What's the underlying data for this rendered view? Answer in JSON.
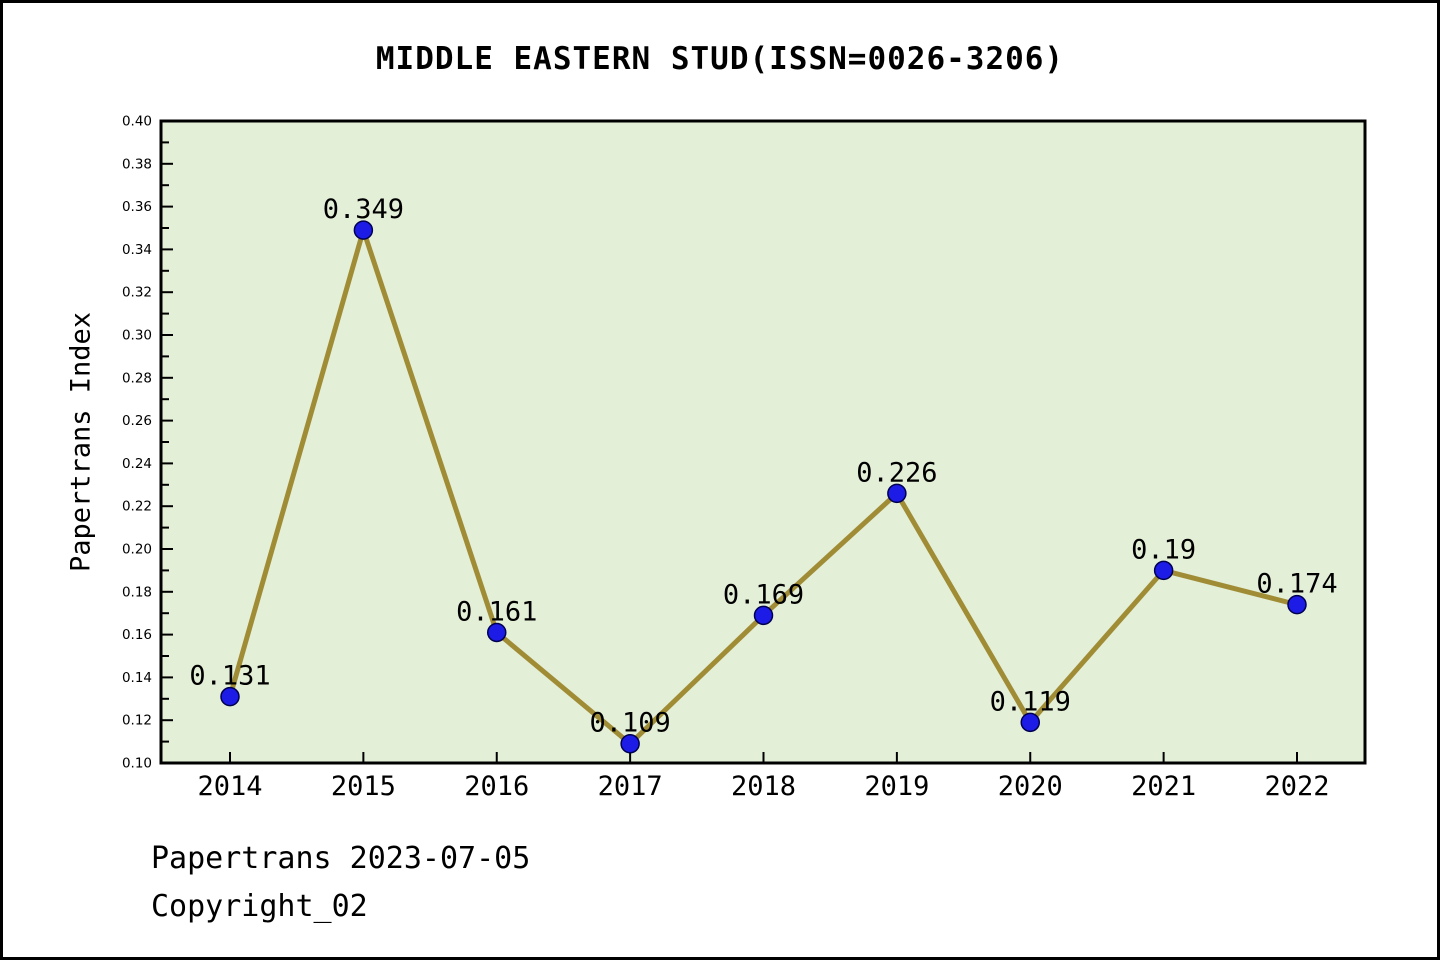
{
  "title": "MIDDLE EASTERN STUD(ISSN=0026-3206)",
  "ylabel": "Papertrans Index",
  "footer": {
    "line1": "Papertrans 2023-07-05",
    "line2": "Copyright_02"
  },
  "colors": {
    "plot_background": "#e4efd8",
    "line": "#a08c35",
    "marker_fill": "#1c1ce6",
    "marker_edge": "#000050",
    "axis": "#000000",
    "text": "#000000"
  },
  "chart_data": {
    "type": "line",
    "title": "MIDDLE EASTERN STUD(ISSN=0026-3206)",
    "xlabel": "",
    "ylabel": "Papertrans Index",
    "categories": [
      "2014",
      "2015",
      "2016",
      "2017",
      "2018",
      "2019",
      "2020",
      "2021",
      "2022"
    ],
    "values": [
      0.131,
      0.349,
      0.161,
      0.109,
      0.169,
      0.226,
      0.119,
      0.19,
      0.174
    ],
    "point_labels": [
      "0.131",
      "0.349",
      "0.161",
      "0.109",
      "0.169",
      "0.226",
      "0.119",
      "0.19",
      "0.174"
    ],
    "ylim": [
      0.1,
      0.4
    ],
    "yticks": [
      "0.10",
      "0.12",
      "0.14",
      "0.16",
      "0.18",
      "0.20",
      "0.22",
      "0.24",
      "0.26",
      "0.28",
      "0.30",
      "0.32",
      "0.34",
      "0.36",
      "0.38",
      "0.40"
    ],
    "ytick_minor_step": 0.01,
    "grid": "off",
    "legend": "none",
    "marker": "circle",
    "tick_direction": "in"
  }
}
